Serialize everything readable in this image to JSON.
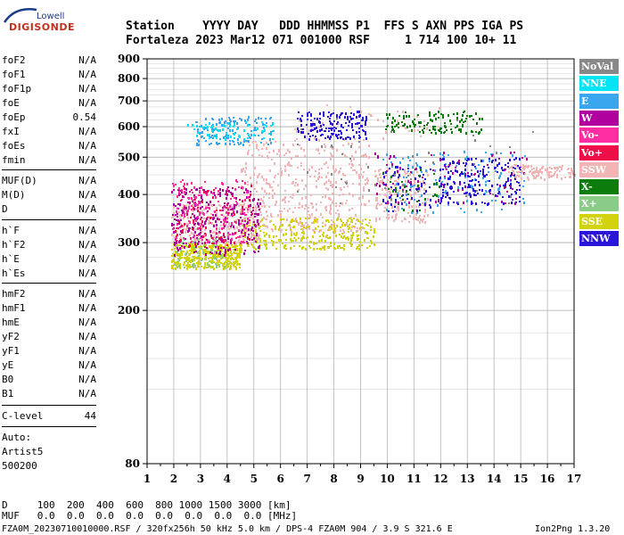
{
  "logo": {
    "brand_top": "Lowell",
    "brand_main": "DIGISONDE"
  },
  "header": {
    "line1": "Station    YYYY DAY   DDD HHMMSS P1  FFS S AXN PPS IGA PS",
    "line2": "Fortaleza 2023 Mar12 071 001000 RSF     1 714 100 10+ 11"
  },
  "params": {
    "group1": [
      {
        "name": "foF2",
        "value": "N/A"
      },
      {
        "name": "foF1",
        "value": "N/A"
      },
      {
        "name": "foF1p",
        "value": "N/A"
      },
      {
        "name": "foE",
        "value": "N/A"
      },
      {
        "name": "foEp",
        "value": "0.54"
      },
      {
        "name": "fxI",
        "value": "N/A"
      },
      {
        "name": "foEs",
        "value": "N/A"
      },
      {
        "name": "fmin",
        "value": "N/A"
      }
    ],
    "group2": [
      {
        "name": "MUF(D)",
        "value": "N/A"
      },
      {
        "name": "M(D)",
        "value": "N/A"
      },
      {
        "name": "D",
        "value": "N/A"
      }
    ],
    "group3": [
      {
        "name": "h`F",
        "value": "N/A"
      },
      {
        "name": "h`F2",
        "value": "N/A"
      },
      {
        "name": "h`E",
        "value": "N/A"
      },
      {
        "name": "h`Es",
        "value": "N/A"
      }
    ],
    "group4": [
      {
        "name": "hmF2",
        "value": "N/A"
      },
      {
        "name": "hmF1",
        "value": "N/A"
      },
      {
        "name": "hmE",
        "value": "N/A"
      },
      {
        "name": "yF2",
        "value": "N/A"
      },
      {
        "name": "yF1",
        "value": "N/A"
      },
      {
        "name": "yE",
        "value": "N/A"
      },
      {
        "name": "B0",
        "value": "N/A"
      },
      {
        "name": "B1",
        "value": "N/A"
      }
    ],
    "clevel": {
      "name": "C-level",
      "value": "44"
    },
    "auto": {
      "line1": "Auto:",
      "line2": "Artist5",
      "line3": "500200"
    }
  },
  "legend": [
    {
      "label": "NoVal",
      "color": "#888888"
    },
    {
      "label": "NNE",
      "color": "#00e5f5"
    },
    {
      "label": "E",
      "color": "#3aa6ee"
    },
    {
      "label": "W",
      "color": "#b0009e"
    },
    {
      "label": "Vo-",
      "color": "#ff2ea2"
    },
    {
      "label": "Vo+",
      "color": "#ee0f48"
    },
    {
      "label": "SSW",
      "color": "#f2b5b5"
    },
    {
      "label": "X-",
      "color": "#0c7d0c"
    },
    {
      "label": "X+",
      "color": "#88cc88"
    },
    {
      "label": "SSE",
      "color": "#d2d20f"
    },
    {
      "label": "NNW",
      "color": "#2a14d8"
    }
  ],
  "footer": {
    "d_row": "D     100  200  400  600  800 1000 1500 3000 [km]",
    "muf_row": "MUF   0.0  0.0  0.0  0.0  0.0  0.0  0.0  0.0 [MHz]",
    "file_line": "FZA0M_20230710010000.RSF / 320fx256h 50 kHz 5.0 km / DPS-4 FZA0M 904 / 3.9 S 321.6 E",
    "version": "Ion2Png 1.3.20"
  },
  "chart_data": {
    "type": "scatter",
    "title": "",
    "xlabel": "",
    "ylabel": "",
    "xlim": [
      1,
      17
    ],
    "ylim": [
      80,
      900
    ],
    "x_ticks": [
      1,
      2,
      3,
      4,
      5,
      6,
      7,
      8,
      9,
      10,
      11,
      12,
      13,
      14,
      15,
      16,
      17
    ],
    "y_ticks": [
      80,
      200,
      300,
      400,
      500,
      600,
      700,
      800,
      900
    ],
    "y_scale": "log",
    "x_unit": "MHz",
    "y_unit": "km",
    "grid": true,
    "legend_position": "right",
    "clusters": [
      {
        "series": "SSE",
        "x": [
          1.9,
          4.5
        ],
        "y": [
          258,
          300
        ],
        "n": 380
      },
      {
        "series": "SSE",
        "x": [
          4.5,
          9.5
        ],
        "y": [
          290,
          350
        ],
        "n": 320
      },
      {
        "series": "X+",
        "x": [
          2.0,
          4.0
        ],
        "y": [
          260,
          310
        ],
        "n": 70
      },
      {
        "series": "SSW",
        "x": [
          1.9,
          5.2
        ],
        "y": [
          300,
          380
        ],
        "n": 280
      },
      {
        "series": "SSW",
        "x": [
          4.5,
          9.3
        ],
        "y": [
          320,
          560
        ],
        "n": 420
      },
      {
        "series": "SSW",
        "x": [
          9.5,
          11.5
        ],
        "y": [
          340,
          470
        ],
        "n": 180
      },
      {
        "series": "SSW",
        "x": [
          6.5,
          12.0
        ],
        "y": [
          560,
          690
        ],
        "n": 40
      },
      {
        "series": "W",
        "x": [
          1.9,
          5.2
        ],
        "y": [
          280,
          420
        ],
        "n": 300
      },
      {
        "series": "Vo-",
        "x": [
          1.9,
          4.8
        ],
        "y": [
          300,
          440
        ],
        "n": 170
      },
      {
        "series": "Vo+",
        "x": [
          2.0,
          5.0
        ],
        "y": [
          290,
          430
        ],
        "n": 80
      },
      {
        "series": "E",
        "x": [
          2.8,
          5.7
        ],
        "y": [
          540,
          640
        ],
        "n": 140
      },
      {
        "series": "E",
        "x": [
          9.8,
          15.2
        ],
        "y": [
          360,
          520
        ],
        "n": 120
      },
      {
        "series": "NNE",
        "x": [
          2.5,
          5.8
        ],
        "y": [
          560,
          620
        ],
        "n": 60
      },
      {
        "series": "NNW",
        "x": [
          6.6,
          9.2
        ],
        "y": [
          560,
          660
        ],
        "n": 160
      },
      {
        "series": "NNW",
        "x": [
          11.9,
          15.0
        ],
        "y": [
          380,
          500
        ],
        "n": 200
      },
      {
        "series": "NNW",
        "x": [
          9.8,
          11.6
        ],
        "y": [
          360,
          480
        ],
        "n": 60
      },
      {
        "series": "X-",
        "x": [
          9.9,
          13.6
        ],
        "y": [
          580,
          660
        ],
        "n": 120
      },
      {
        "series": "X-",
        "x": [
          9.8,
          12.0
        ],
        "y": [
          360,
          470
        ],
        "n": 30
      },
      {
        "series": "W",
        "x": [
          9.5,
          15.2
        ],
        "y": [
          380,
          520
        ],
        "n": 80
      },
      {
        "series": "SSW",
        "x": [
          14.5,
          17.0
        ],
        "y": [
          440,
          480
        ],
        "n": 110
      },
      {
        "series": "NoVal",
        "x": [
          6.6,
          15.5
        ],
        "y": [
          380,
          640
        ],
        "n": 50
      }
    ]
  }
}
